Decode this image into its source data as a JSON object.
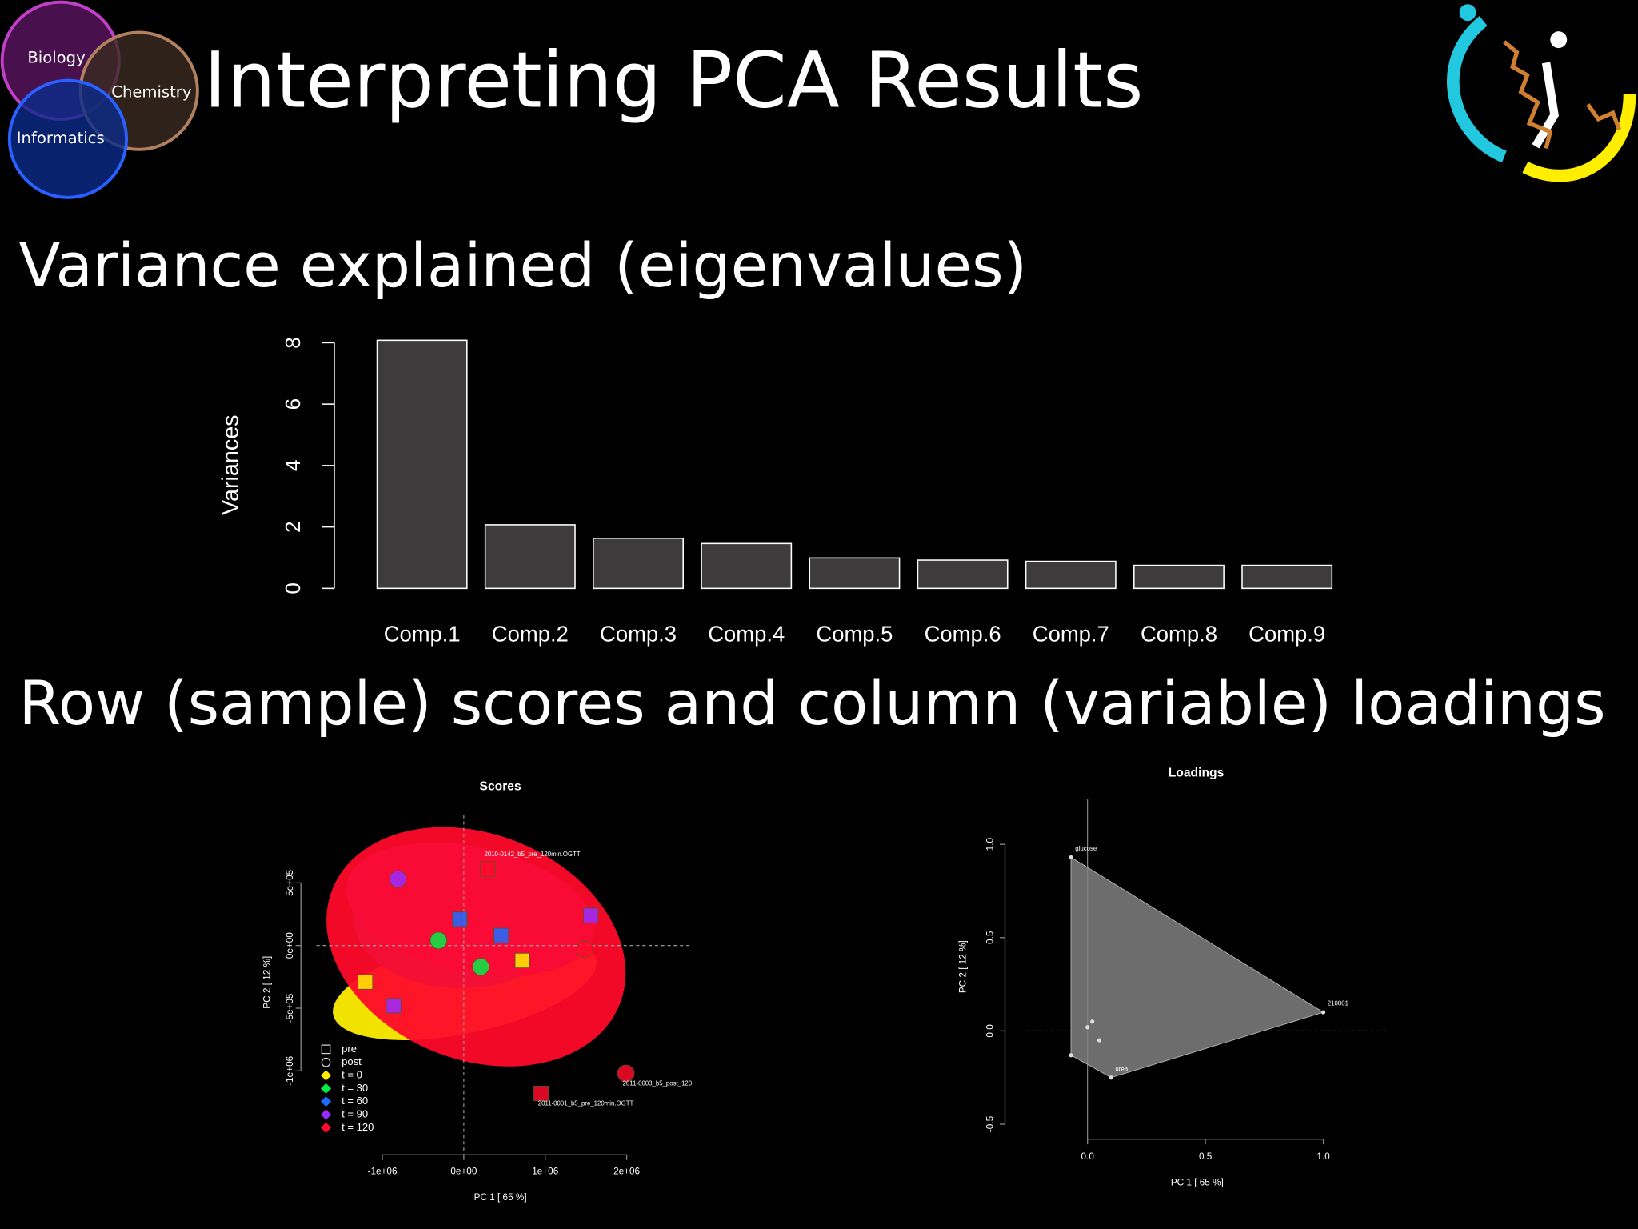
{
  "slide": {
    "title": "Interpreting PCA Results",
    "headings": [
      "Variance explained (eigenvalues)",
      "Row (sample) scores and column (variable) loadings"
    ],
    "logo_circles": [
      "Biology",
      "Chemistry",
      "Informatics"
    ]
  },
  "chart_data": [
    {
      "type": "bar",
      "ylabel": "Variances",
      "categories": [
        "Comp.1",
        "Comp.2",
        "Comp.3",
        "Comp.4",
        "Comp.5",
        "Comp.6",
        "Comp.7",
        "Comp.8",
        "Comp.9"
      ],
      "values": [
        8.08,
        2.07,
        1.63,
        1.46,
        0.99,
        0.92,
        0.88,
        0.75,
        0.75
      ],
      "color": "#3d3b3b",
      "ylim": [
        0,
        8
      ],
      "yticks": [
        0,
        2,
        4,
        6,
        8
      ]
    },
    {
      "type": "scatter",
      "title": "Scores",
      "xlabel": "PC 1 [ 65 %]",
      "ylabel": "PC 2 [ 12 %]",
      "xlim": [
        -2000000,
        2770000
      ],
      "ylim": [
        -1670000,
        1040000
      ],
      "xticks": [
        {
          "value": -1000000,
          "label": "-1e+06"
        },
        {
          "value": 0,
          "label": "0e+00"
        },
        {
          "value": 1000000,
          "label": "1e+06"
        },
        {
          "value": 2000000,
          "label": "2e+06"
        }
      ],
      "yticks": [
        {
          "value": 500000,
          "label": "5e+05"
        },
        {
          "value": 0,
          "label": "0e+00"
        },
        {
          "value": -500000,
          "label": "-5e+05"
        },
        {
          "value": -1000000,
          "label": "-1e+06"
        }
      ],
      "shapes": [
        {
          "name": "pre",
          "marker": "square"
        },
        {
          "name": "post",
          "marker": "circle"
        }
      ],
      "series": [
        {
          "name": "t = 0",
          "color": "#ffee00",
          "x": [
            -1210000,
            720000
          ],
          "values": [
            -290000,
            -120000
          ],
          "markers": [
            "square",
            "square"
          ],
          "labels": [
            null,
            null
          ],
          "ellipse": {
            "cx": 10000,
            "cy": -330000,
            "rx": 1650000,
            "ry": 370000,
            "angle": -12
          }
        },
        {
          "name": "t = 30",
          "color": "#00ee44",
          "x": [
            -310000,
            210000
          ],
          "values": [
            40000,
            -170000
          ],
          "markers": [
            "circle",
            "circle"
          ],
          "labels": [
            null,
            null
          ],
          "ellipse": {
            "cx": 80000,
            "cy": 170000,
            "rx": 1050000,
            "ry": 500000,
            "angle": 5
          }
        },
        {
          "name": "t = 60",
          "color": "#1a6cff",
          "x": [
            -50000,
            460000
          ],
          "values": [
            210000,
            80000
          ],
          "markers": [
            "square",
            "square"
          ],
          "labels": [
            null,
            null
          ],
          "ellipse": {
            "cx": -50000,
            "cy": 210000,
            "rx": 1300000,
            "ry": 550000,
            "angle": 0
          }
        },
        {
          "name": "t = 90",
          "color": "#9a2bff",
          "x": [
            -810000,
            1560000,
            -860000
          ],
          "values": [
            530000,
            240000,
            -480000
          ],
          "markers": [
            "circle",
            "square",
            "square"
          ],
          "labels": [
            null,
            null,
            null
          ],
          "ellipse": {
            "cx": 80000,
            "cy": 290000,
            "rx": 1550000,
            "ry": 500000,
            "angle": 12
          }
        },
        {
          "name": "t = 120",
          "color": "#ff0a2a",
          "x": [
            290000,
            950000,
            1990000,
            1490000
          ],
          "values": [
            610000,
            -1180000,
            -1020000,
            -30000
          ],
          "markers": [
            "square",
            "square",
            "circle",
            "circle"
          ],
          "labels": [
            "2010-0142_b5_pre_120min.OGTT",
            "2011-0001_b5_pre_120min.OGTT",
            "2011-0003_b5_post_120",
            null
          ],
          "ellipse": {
            "cx": 150000,
            "cy": -10000,
            "rx": 1900000,
            "ry": 900000,
            "angle": 22
          }
        }
      ]
    },
    {
      "type": "loadings",
      "title": "Loadings",
      "xlabel": "PC 1 [ 65 %]",
      "ylabel": "PC 2 [ 12 %]",
      "xlim": [
        -0.35,
        1.28
      ],
      "ylim": [
        -0.58,
        1.24
      ],
      "xticks": [
        {
          "value": 0,
          "label": "0.0"
        },
        {
          "value": 0.5,
          "label": "0.5"
        },
        {
          "value": 1,
          "label": "1.0"
        }
      ],
      "yticks": [
        {
          "value": -0.5,
          "label": "-0.5"
        },
        {
          "value": 0,
          "label": "0.0"
        },
        {
          "value": 0.5,
          "label": "0.5"
        },
        {
          "value": 1,
          "label": "1.0"
        }
      ],
      "hull": true,
      "color": "#808080",
      "x": [
        -0.07,
        1.0,
        0.1,
        -0.07,
        0.0,
        0.02,
        0.05
      ],
      "values": [
        0.93,
        0.1,
        -0.25,
        -0.13,
        0.02,
        0.05,
        -0.05
      ],
      "labels": [
        "glucose",
        "210001",
        "urea",
        null,
        null,
        null,
        null
      ]
    }
  ]
}
